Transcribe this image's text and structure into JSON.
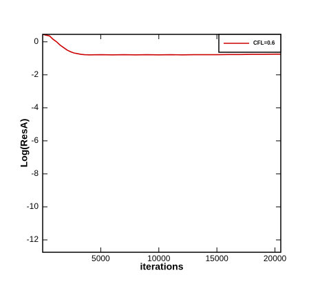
{
  "chart_data": {
    "type": "line",
    "x_label": "iterations",
    "y_label": "Log(ResA)",
    "x": [
      0,
      300,
      600,
      900,
      1200,
      1500,
      1800,
      2100,
      2400,
      2700,
      3000,
      3300,
      3600,
      4000,
      5000,
      6000,
      7000,
      8000,
      9000,
      10000,
      11000,
      12000,
      13000,
      14000,
      15000,
      16000,
      17000,
      18000,
      19000,
      20000,
      20500
    ],
    "series": [
      {
        "name": "CFL=0.6",
        "color": "#cc0000",
        "values": [
          0.45,
          0.4,
          0.35,
          0.15,
          0.0,
          -0.2,
          -0.35,
          -0.5,
          -0.6,
          -0.68,
          -0.72,
          -0.76,
          -0.78,
          -0.79,
          -0.78,
          -0.79,
          -0.78,
          -0.79,
          -0.78,
          -0.79,
          -0.78,
          -0.79,
          -0.78,
          -0.78,
          -0.78,
          -0.77,
          -0.77,
          -0.76,
          -0.76,
          -0.75,
          -0.75
        ]
      }
    ],
    "xlim": [
      0,
      20500
    ],
    "ylim": [
      -12.75,
      0.45
    ],
    "xticks": [
      5000,
      10000,
      15000,
      20000
    ],
    "yticks": [
      0,
      -2,
      -4,
      -6,
      -8,
      -10,
      -12
    ],
    "legend": "top-right"
  }
}
